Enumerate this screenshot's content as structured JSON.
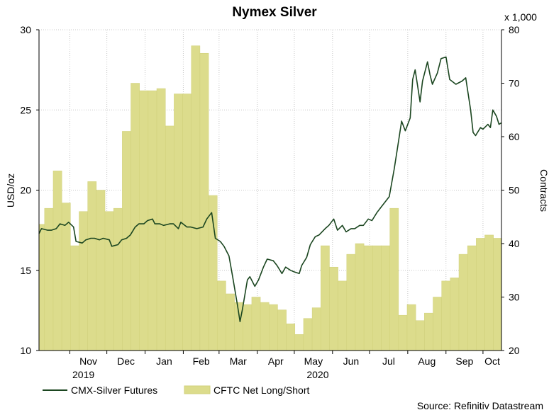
{
  "chart_data": {
    "type": "line+bar",
    "title": "Nymex Silver",
    "source": "Source: Refinitiv Datastream",
    "left_axis": {
      "label": "USD/oz",
      "ylim": [
        10,
        30
      ],
      "ticks": [
        "10",
        "15",
        "20",
        "25",
        "30"
      ]
    },
    "right_axis": {
      "label": "Contracts",
      "multiplier": "x 1,000",
      "ylim": [
        20,
        80
      ],
      "ticks": [
        "20",
        "30",
        "40",
        "50",
        "60",
        "70",
        "80"
      ]
    },
    "x_axis": {
      "range": [
        "2019-10-07",
        "2020-10-16"
      ],
      "months": [
        {
          "label": "Nov",
          "date": "2019-11-01"
        },
        {
          "label": "Dec",
          "date": "2019-12-01"
        },
        {
          "label": "Jan",
          "date": "2020-01-01"
        },
        {
          "label": "Feb",
          "date": "2020-02-01"
        },
        {
          "label": "Mar",
          "date": "2020-03-01"
        },
        {
          "label": "Apr",
          "date": "2020-04-01"
        },
        {
          "label": "May",
          "date": "2020-05-01"
        },
        {
          "label": "Jun",
          "date": "2020-06-01"
        },
        {
          "label": "Jul",
          "date": "2020-07-01"
        },
        {
          "label": "Aug",
          "date": "2020-08-01"
        },
        {
          "label": "Sep",
          "date": "2020-09-01"
        },
        {
          "label": "Oct",
          "date": "2020-10-01"
        }
      ],
      "years": [
        {
          "label": "2019",
          "date": "2019-11-12"
        },
        {
          "label": "2020",
          "date": "2020-05-20"
        }
      ]
    },
    "grid": true,
    "legend_position": "bottom-left",
    "colors": {
      "line": "#1b4620",
      "bar_fill": "#dcdc8c",
      "bar_stroke": "#d0d07a",
      "grid": "#c8c8c8"
    },
    "series": [
      {
        "name": "CFTC Net Long/Short",
        "type": "bar",
        "axis": "right",
        "points": [
          [
            "2019-10-08",
            43.6
          ],
          [
            "2019-10-15",
            46.6
          ],
          [
            "2019-10-22",
            53.6
          ],
          [
            "2019-10-29",
            47.6
          ],
          [
            "2019-11-05",
            39.6
          ],
          [
            "2019-11-12",
            46.0
          ],
          [
            "2019-11-19",
            51.6
          ],
          [
            "2019-11-26",
            50.0
          ],
          [
            "2019-12-03",
            46.0
          ],
          [
            "2019-12-10",
            46.6
          ],
          [
            "2019-12-17",
            61.0
          ],
          [
            "2019-12-24",
            70.0
          ],
          [
            "2019-12-31",
            68.6
          ],
          [
            "2020-01-07",
            68.6
          ],
          [
            "2020-01-14",
            69.0
          ],
          [
            "2020-01-21",
            62.0
          ],
          [
            "2020-01-28",
            68.0
          ],
          [
            "2020-02-04",
            68.0
          ],
          [
            "2020-02-11",
            77.0
          ],
          [
            "2020-02-18",
            75.6
          ],
          [
            "2020-02-25",
            49.0
          ],
          [
            "2020-03-03",
            33.0
          ],
          [
            "2020-03-10",
            30.6
          ],
          [
            "2020-03-17",
            29.0
          ],
          [
            "2020-03-24",
            28.6
          ],
          [
            "2020-03-31",
            30.0
          ],
          [
            "2020-04-07",
            29.0
          ],
          [
            "2020-04-14",
            28.6
          ],
          [
            "2020-04-21",
            27.6
          ],
          [
            "2020-04-28",
            25.0
          ],
          [
            "2020-05-05",
            23.0
          ],
          [
            "2020-05-12",
            26.0
          ],
          [
            "2020-05-19",
            28.0
          ],
          [
            "2020-05-26",
            39.6
          ],
          [
            "2020-06-02",
            35.6
          ],
          [
            "2020-06-09",
            33.0
          ],
          [
            "2020-06-16",
            38.0
          ],
          [
            "2020-06-23",
            40.0
          ],
          [
            "2020-06-30",
            39.6
          ],
          [
            "2020-07-07",
            39.6
          ],
          [
            "2020-07-14",
            39.6
          ],
          [
            "2020-07-21",
            46.6
          ],
          [
            "2020-07-28",
            26.6
          ],
          [
            "2020-08-04",
            28.6
          ],
          [
            "2020-08-11",
            25.6
          ],
          [
            "2020-08-18",
            27.0
          ],
          [
            "2020-08-25",
            30.0
          ],
          [
            "2020-09-01",
            33.0
          ],
          [
            "2020-09-08",
            33.6
          ],
          [
            "2020-09-15",
            38.0
          ],
          [
            "2020-09-22",
            39.6
          ],
          [
            "2020-09-29",
            41.0
          ],
          [
            "2020-10-06",
            41.6
          ],
          [
            "2020-10-13",
            41.0
          ]
        ]
      },
      {
        "name": "CMX-Silver Futures",
        "type": "line",
        "axis": "left",
        "points": [
          [
            "2019-10-07",
            17.3
          ],
          [
            "2019-10-09",
            17.6
          ],
          [
            "2019-10-14",
            17.5
          ],
          [
            "2019-10-17",
            17.5
          ],
          [
            "2019-10-21",
            17.6
          ],
          [
            "2019-10-24",
            17.9
          ],
          [
            "2019-10-28",
            17.8
          ],
          [
            "2019-10-31",
            18.0
          ],
          [
            "2019-11-04",
            17.7
          ],
          [
            "2019-11-06",
            16.8
          ],
          [
            "2019-11-11",
            16.7
          ],
          [
            "2019-11-14",
            16.9
          ],
          [
            "2019-11-18",
            17.0
          ],
          [
            "2019-11-21",
            17.0
          ],
          [
            "2019-11-25",
            16.9
          ],
          [
            "2019-11-28",
            17.0
          ],
          [
            "2019-12-03",
            16.9
          ],
          [
            "2019-12-05",
            16.5
          ],
          [
            "2019-12-10",
            16.6
          ],
          [
            "2019-12-13",
            16.9
          ],
          [
            "2019-12-17",
            17.0
          ],
          [
            "2019-12-20",
            17.2
          ],
          [
            "2019-12-24",
            17.7
          ],
          [
            "2019-12-27",
            17.9
          ],
          [
            "2019-12-31",
            17.9
          ],
          [
            "2020-01-03",
            18.1
          ],
          [
            "2020-01-07",
            18.2
          ],
          [
            "2020-01-09",
            17.9
          ],
          [
            "2020-01-13",
            17.9
          ],
          [
            "2020-01-16",
            17.8
          ],
          [
            "2020-01-21",
            17.9
          ],
          [
            "2020-01-24",
            17.9
          ],
          [
            "2020-01-28",
            17.6
          ],
          [
            "2020-01-30",
            18.0
          ],
          [
            "2020-02-04",
            17.7
          ],
          [
            "2020-02-07",
            17.7
          ],
          [
            "2020-02-12",
            17.6
          ],
          [
            "2020-02-17",
            17.7
          ],
          [
            "2020-02-20",
            18.2
          ],
          [
            "2020-02-24",
            18.6
          ],
          [
            "2020-02-27",
            17.0
          ],
          [
            "2020-03-02",
            16.8
          ],
          [
            "2020-03-05",
            16.5
          ],
          [
            "2020-03-09",
            15.9
          ],
          [
            "2020-03-12",
            14.6
          ],
          [
            "2020-03-16",
            12.8
          ],
          [
            "2020-03-18",
            11.8
          ],
          [
            "2020-03-20",
            12.6
          ],
          [
            "2020-03-24",
            14.4
          ],
          [
            "2020-03-26",
            14.6
          ],
          [
            "2020-03-30",
            14.0
          ],
          [
            "2020-04-02",
            14.4
          ],
          [
            "2020-04-06",
            15.2
          ],
          [
            "2020-04-09",
            15.7
          ],
          [
            "2020-04-14",
            15.6
          ],
          [
            "2020-04-17",
            15.3
          ],
          [
            "2020-04-21",
            14.8
          ],
          [
            "2020-04-24",
            15.2
          ],
          [
            "2020-04-28",
            15.0
          ],
          [
            "2020-05-01",
            14.9
          ],
          [
            "2020-05-05",
            14.8
          ],
          [
            "2020-05-07",
            15.3
          ],
          [
            "2020-05-11",
            15.8
          ],
          [
            "2020-05-14",
            16.6
          ],
          [
            "2020-05-18",
            17.1
          ],
          [
            "2020-05-21",
            17.2
          ],
          [
            "2020-05-26",
            17.6
          ],
          [
            "2020-05-29",
            17.8
          ],
          [
            "2020-06-02",
            18.2
          ],
          [
            "2020-06-05",
            17.5
          ],
          [
            "2020-06-09",
            17.8
          ],
          [
            "2020-06-12",
            17.4
          ],
          [
            "2020-06-16",
            17.6
          ],
          [
            "2020-06-19",
            17.6
          ],
          [
            "2020-06-23",
            17.8
          ],
          [
            "2020-06-26",
            17.8
          ],
          [
            "2020-06-30",
            18.2
          ],
          [
            "2020-07-03",
            18.1
          ],
          [
            "2020-07-07",
            18.6
          ],
          [
            "2020-07-10",
            18.9
          ],
          [
            "2020-07-14",
            19.3
          ],
          [
            "2020-07-17",
            19.6
          ],
          [
            "2020-07-21",
            21.3
          ],
          [
            "2020-07-24",
            22.8
          ],
          [
            "2020-07-27",
            24.3
          ],
          [
            "2020-07-30",
            23.7
          ],
          [
            "2020-08-03",
            24.5
          ],
          [
            "2020-08-05",
            26.9
          ],
          [
            "2020-08-07",
            27.5
          ],
          [
            "2020-08-11",
            25.5
          ],
          [
            "2020-08-13",
            26.8
          ],
          [
            "2020-08-17",
            28.0
          ],
          [
            "2020-08-19",
            27.2
          ],
          [
            "2020-08-21",
            26.6
          ],
          [
            "2020-08-25",
            27.3
          ],
          [
            "2020-08-28",
            28.2
          ],
          [
            "2020-09-01",
            28.3
          ],
          [
            "2020-09-04",
            26.9
          ],
          [
            "2020-09-09",
            26.6
          ],
          [
            "2020-09-14",
            26.8
          ],
          [
            "2020-09-17",
            27.0
          ],
          [
            "2020-09-21",
            25.0
          ],
          [
            "2020-09-23",
            23.6
          ],
          [
            "2020-09-25",
            23.4
          ],
          [
            "2020-09-29",
            23.9
          ],
          [
            "2020-10-01",
            23.8
          ],
          [
            "2020-10-05",
            24.1
          ],
          [
            "2020-10-07",
            23.9
          ],
          [
            "2020-10-09",
            25.0
          ],
          [
            "2020-10-12",
            24.6
          ],
          [
            "2020-10-14",
            24.1
          ],
          [
            "2020-10-16",
            24.2
          ]
        ]
      }
    ]
  }
}
